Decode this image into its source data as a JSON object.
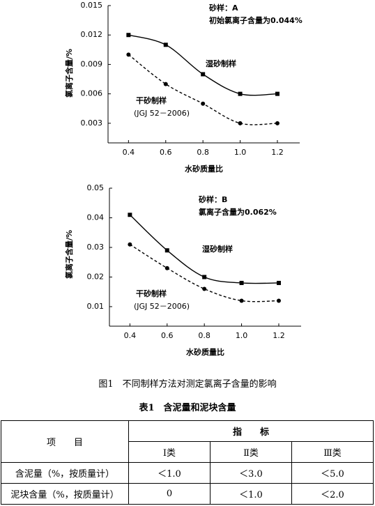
{
  "chart_data": [
    {
      "type": "line",
      "y_label": "氯离子含量/%",
      "x_label": "水砂质量比",
      "annotations": [
        "砂样：A",
        "初始氯离子含量为0.044%",
        "(JGJ 52－2006)"
      ],
      "x": [
        0.4,
        0.6,
        0.8,
        1.0,
        1.2
      ],
      "xlim": [
        0.29,
        1.32
      ],
      "xticks": [
        0.4,
        0.6,
        0.8,
        {
          "value": 1.0,
          "label": "1.0"
        },
        1.2
      ],
      "ylim": [
        0.001,
        0.015
      ],
      "yticks": [
        0.003,
        0.006,
        0.009,
        0.012,
        0.015
      ],
      "series": [
        {
          "name": "湿砂制样",
          "color": "#000000",
          "line_style": "solid",
          "marker": "square",
          "values": [
            0.012,
            0.011,
            0.008,
            0.006,
            0.006
          ]
        },
        {
          "name": "干砂制样",
          "color": "#000000",
          "line_style": "dashed",
          "marker": "circle",
          "values": [
            0.01,
            0.007,
            0.005,
            0.003,
            0.003
          ]
        }
      ]
    },
    {
      "type": "line",
      "y_label": "氯离子含量/%",
      "x_label": "水砂质量比",
      "annotations": [
        "砂样：B",
        "氯离子含量为0.062%",
        "(JGJ 52－2006)"
      ],
      "x": [
        0.4,
        0.6,
        0.8,
        1.0,
        1.2
      ],
      "xlim": [
        0.29,
        1.32
      ],
      "xticks": [
        0.4,
        0.6,
        0.8,
        {
          "value": 1.0,
          "label": "1.0"
        },
        1.2
      ],
      "ylim": [
        0.0034,
        0.05
      ],
      "yticks": [
        0.01,
        0.02,
        0.03,
        0.04,
        0.05
      ],
      "series": [
        {
          "name": "湿砂制样",
          "color": "#000000",
          "line_style": "solid",
          "marker": "square",
          "values": [
            0.041,
            0.029,
            0.02,
            0.018,
            0.018
          ]
        },
        {
          "name": "干砂制样",
          "color": "#000000",
          "line_style": "dashed",
          "marker": "circle",
          "values": [
            0.031,
            0.023,
            0.016,
            0.012,
            0.012
          ]
        }
      ]
    }
  ],
  "figure_caption": "图1　不同制样方法对测定氯离子含量的影响",
  "table": {
    "title": "表1　含泥量和泥块含量",
    "header": [
      "项　　目",
      "指　　标"
    ],
    "subheader": [
      "Ⅰ类",
      "Ⅱ类",
      "Ⅲ类"
    ],
    "rows": [
      [
        "含泥量（%，按质量计）",
        "＜1.0",
        "＜3.0",
        "＜5.0"
      ],
      [
        "泥块含量（%，按质量计）",
        "0",
        "＜1.0",
        "＜2.0"
      ]
    ]
  }
}
